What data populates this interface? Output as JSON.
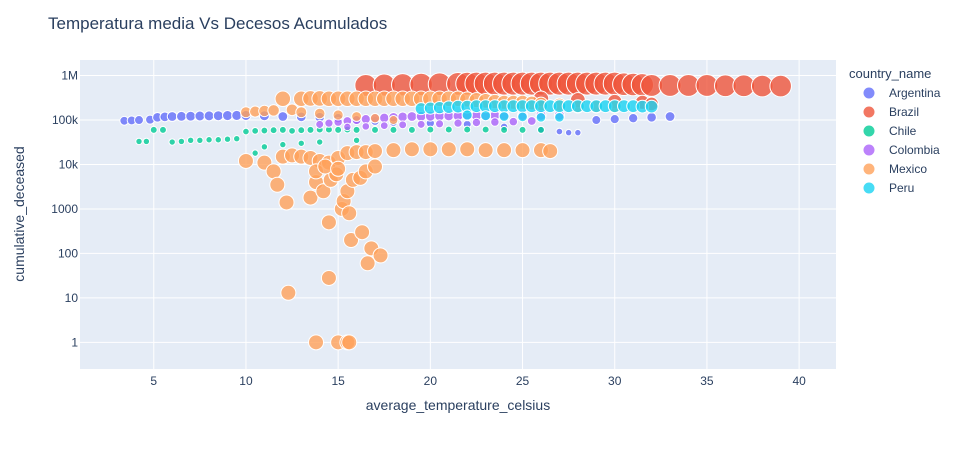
{
  "chart_data": {
    "type": "scatter",
    "title": "Temperatura media Vs Decesos Acumulados",
    "xlabel": "average_temperature_celsius",
    "ylabel": "cumulative_deceased",
    "xlim": [
      1,
      42
    ],
    "ylim_log10": [
      -0.6,
      6.35
    ],
    "y_scale": "log",
    "x_ticks": [
      5,
      10,
      15,
      20,
      25,
      30,
      35,
      40
    ],
    "x_tick_labels": [
      "5",
      "10",
      "15",
      "20",
      "25",
      "30",
      "35",
      "40"
    ],
    "y_ticks": [
      1,
      10,
      100,
      1000,
      10000,
      100000,
      1000000
    ],
    "y_tick_labels": [
      "1",
      "10",
      "100",
      "1000",
      "10k",
      "100k",
      "1M"
    ],
    "legend_title": "country_name",
    "legend_position": "right",
    "grid": true,
    "marker_size_encoding": "cumulative_deceased",
    "series": [
      {
        "name": "Argentina",
        "color": "#636efa",
        "points": [
          [
            3.4,
            96000
          ],
          [
            3.8,
            98000
          ],
          [
            4.2,
            100000
          ],
          [
            4.8,
            102000
          ],
          [
            5.2,
            115000
          ],
          [
            5.6,
            118000
          ],
          [
            6.0,
            120000
          ],
          [
            6.5,
            121000
          ],
          [
            7.0,
            122000
          ],
          [
            7.5,
            123000
          ],
          [
            8.0,
            124000
          ],
          [
            8.5,
            125000
          ],
          [
            9.0,
            126000
          ],
          [
            9.5,
            127000
          ],
          [
            10.0,
            127000
          ],
          [
            11.0,
            125000
          ],
          [
            12.0,
            120000
          ],
          [
            13.0,
            118000
          ],
          [
            14.0,
            116000
          ],
          [
            15.0,
            110000
          ],
          [
            16.0,
            100000
          ],
          [
            17.0,
            95000
          ],
          [
            18.0,
            90000
          ],
          [
            20.0,
            85000
          ],
          [
            22.0,
            80000
          ],
          [
            24.0,
            70000
          ],
          [
            26.0,
            60000
          ],
          [
            27.0,
            55000
          ],
          [
            27.5,
            52000
          ],
          [
            28.0,
            52000
          ],
          [
            29.0,
            100000
          ],
          [
            30.0,
            105000
          ],
          [
            31.0,
            110000
          ],
          [
            32.0,
            115000
          ],
          [
            33.0,
            120000
          ]
        ]
      },
      {
        "name": "Brazil",
        "color": "#EF553B",
        "points": [
          [
            16.5,
            600000
          ],
          [
            17.5,
            610000
          ],
          [
            18.5,
            620000
          ],
          [
            19.5,
            630000
          ],
          [
            20.5,
            640000
          ],
          [
            21.5,
            650000
          ],
          [
            22.0,
            655000
          ],
          [
            22.5,
            660000
          ],
          [
            23.0,
            660000
          ],
          [
            23.5,
            660000
          ],
          [
            24.0,
            660000
          ],
          [
            24.5,
            660000
          ],
          [
            25.0,
            660000
          ],
          [
            25.5,
            660000
          ],
          [
            26.0,
            660000
          ],
          [
            26.5,
            660000
          ],
          [
            27.0,
            660000
          ],
          [
            27.5,
            660000
          ],
          [
            28.0,
            660000
          ],
          [
            28.5,
            660000
          ],
          [
            29.0,
            660000
          ],
          [
            29.5,
            660000
          ],
          [
            30.0,
            660000
          ],
          [
            30.5,
            640000
          ],
          [
            31.0,
            630000
          ],
          [
            31.5,
            620000
          ],
          [
            32.0,
            600000
          ],
          [
            33.0,
            600000
          ],
          [
            34.0,
            600000
          ],
          [
            35.0,
            600000
          ],
          [
            36.0,
            590000
          ],
          [
            37.0,
            590000
          ],
          [
            38.0,
            580000
          ],
          [
            39.0,
            580000
          ],
          [
            26.0,
            300000
          ],
          [
            28.0,
            280000
          ],
          [
            30.0,
            260000
          ],
          [
            31.5,
            250000
          ],
          [
            32.0,
            230000
          ]
        ]
      },
      {
        "name": "Chile",
        "color": "#00cc96",
        "points": [
          [
            4.2,
            33000
          ],
          [
            4.6,
            33000
          ],
          [
            5.0,
            60000
          ],
          [
            5.5,
            60000
          ],
          [
            6.0,
            32000
          ],
          [
            6.5,
            33000
          ],
          [
            7.0,
            35000
          ],
          [
            7.5,
            35000
          ],
          [
            8.0,
            36000
          ],
          [
            8.5,
            36000
          ],
          [
            9.0,
            37000
          ],
          [
            9.5,
            38000
          ],
          [
            10.0,
            55000
          ],
          [
            10.5,
            57000
          ],
          [
            11.0,
            58000
          ],
          [
            11.5,
            59000
          ],
          [
            12.0,
            60000
          ],
          [
            12.5,
            57000
          ],
          [
            13.0,
            59000
          ],
          [
            13.5,
            60000
          ],
          [
            14.0,
            61000
          ],
          [
            14.5,
            61000
          ],
          [
            15.0,
            60000
          ],
          [
            15.5,
            61000
          ],
          [
            16.0,
            60000
          ],
          [
            17.0,
            60000
          ],
          [
            18.0,
            60000
          ],
          [
            19.0,
            60000
          ],
          [
            20.0,
            61000
          ],
          [
            21.0,
            61000
          ],
          [
            22.0,
            61000
          ],
          [
            23.0,
            61000
          ],
          [
            24.0,
            60000
          ],
          [
            25.0,
            60000
          ],
          [
            26.0,
            60000
          ],
          [
            10.5,
            18000
          ],
          [
            11.0,
            25000
          ],
          [
            12.0,
            28000
          ],
          [
            13.0,
            30000
          ],
          [
            14.0,
            32000
          ],
          [
            16.0,
            35000
          ]
        ]
      },
      {
        "name": "Colombia",
        "color": "#ab63fa",
        "points": [
          [
            14.0,
            80000
          ],
          [
            14.5,
            85000
          ],
          [
            15.0,
            90000
          ],
          [
            15.5,
            95000
          ],
          [
            16.0,
            100000
          ],
          [
            16.5,
            105000
          ],
          [
            17.0,
            110000
          ],
          [
            17.5,
            112000
          ],
          [
            18.0,
            115000
          ],
          [
            18.5,
            118000
          ],
          [
            19.0,
            120000
          ],
          [
            19.5,
            121000
          ],
          [
            20.0,
            122000
          ],
          [
            20.5,
            123000
          ],
          [
            21.0,
            124000
          ],
          [
            21.5,
            124000
          ],
          [
            22.0,
            125000
          ],
          [
            22.5,
            125000
          ],
          [
            23.0,
            126000
          ],
          [
            23.5,
            126000
          ],
          [
            24.0,
            127000
          ],
          [
            25.0,
            127000
          ],
          [
            26.0,
            128000
          ],
          [
            27.0,
            128000
          ],
          [
            15.5,
            70000
          ],
          [
            16.5,
            72000
          ],
          [
            17.5,
            75000
          ],
          [
            18.5,
            78000
          ],
          [
            19.5,
            80000
          ],
          [
            20.5,
            82000
          ],
          [
            21.5,
            85000
          ],
          [
            22.5,
            88000
          ],
          [
            23.5,
            90000
          ],
          [
            24.5,
            92000
          ],
          [
            25.5,
            95000
          ]
        ]
      },
      {
        "name": "Mexico",
        "color": "#FFA15A",
        "points": [
          [
            10.0,
            150000
          ],
          [
            10.5,
            155000
          ],
          [
            11.0,
            160000
          ],
          [
            11.5,
            165000
          ],
          [
            12.0,
            300000
          ],
          [
            12.5,
            170000
          ],
          [
            13.0,
            300000
          ],
          [
            13.5,
            305000
          ],
          [
            14.0,
            305000
          ],
          [
            14.5,
            300000
          ],
          [
            15.0,
            300000
          ],
          [
            15.5,
            300000
          ],
          [
            16.0,
            300000
          ],
          [
            16.5,
            300000
          ],
          [
            17.0,
            300000
          ],
          [
            17.5,
            300000
          ],
          [
            18.0,
            300000
          ],
          [
            18.5,
            300000
          ],
          [
            19.0,
            300000
          ],
          [
            19.5,
            300000
          ],
          [
            20.0,
            300000
          ],
          [
            20.5,
            300000
          ],
          [
            21.0,
            300000
          ],
          [
            21.5,
            300000
          ],
          [
            22.0,
            290000
          ],
          [
            22.5,
            280000
          ],
          [
            23.0,
            270000
          ],
          [
            23.5,
            260000
          ],
          [
            24.0,
            250000
          ],
          [
            24.5,
            250000
          ],
          [
            25.0,
            250000
          ],
          [
            25.5,
            240000
          ],
          [
            26.0,
            230000
          ],
          [
            27.0,
            220000
          ],
          [
            28.0,
            200000
          ],
          [
            29.0,
            200000
          ],
          [
            30.0,
            200000
          ],
          [
            13.0,
            150000
          ],
          [
            14.0,
            140000
          ],
          [
            15.0,
            130000
          ],
          [
            16.0,
            120000
          ],
          [
            17.0,
            110000
          ],
          [
            18.0,
            100000
          ],
          [
            10.0,
            12000
          ],
          [
            11.0,
            11000
          ],
          [
            11.5,
            7000
          ],
          [
            12.0,
            15000
          ],
          [
            12.5,
            16000
          ],
          [
            13.0,
            15000
          ],
          [
            13.5,
            14000
          ],
          [
            14.0,
            12000
          ],
          [
            14.5,
            11000
          ],
          [
            15.0,
            14000
          ],
          [
            15.5,
            18000
          ],
          [
            16.0,
            19000
          ],
          [
            16.5,
            19000
          ],
          [
            17.0,
            20000
          ],
          [
            18.0,
            21000
          ],
          [
            19.0,
            22000
          ],
          [
            20.0,
            22000
          ],
          [
            21.0,
            22000
          ],
          [
            22.0,
            22000
          ],
          [
            23.0,
            21000
          ],
          [
            24.0,
            21000
          ],
          [
            25.0,
            21000
          ],
          [
            26.0,
            21000
          ],
          [
            26.5,
            20000
          ],
          [
            11.7,
            3500
          ],
          [
            12.2,
            1400
          ],
          [
            13.5,
            1800
          ],
          [
            13.8,
            4000
          ],
          [
            14.2,
            2500
          ],
          [
            14.6,
            4500
          ],
          [
            14.9,
            6000
          ],
          [
            15.2,
            1000
          ],
          [
            15.3,
            1500
          ],
          [
            15.5,
            2500
          ],
          [
            15.6,
            800
          ],
          [
            15.8,
            4500
          ],
          [
            16.2,
            5000
          ],
          [
            16.5,
            7000
          ],
          [
            17.0,
            9000
          ],
          [
            13.8,
            7000
          ],
          [
            14.3,
            9000
          ],
          [
            15.0,
            8000
          ],
          [
            14.5,
            500
          ],
          [
            15.7,
            200
          ],
          [
            16.3,
            300
          ],
          [
            16.8,
            130
          ],
          [
            17.3,
            90
          ],
          [
            16.6,
            60
          ],
          [
            14.5,
            28
          ],
          [
            12.3,
            13
          ],
          [
            13.8,
            1
          ],
          [
            15.0,
            1
          ],
          [
            15.5,
            1
          ],
          [
            15.6,
            1
          ]
        ]
      },
      {
        "name": "Peru",
        "color": "#19d3f3",
        "points": [
          [
            19.5,
            180000
          ],
          [
            20.0,
            185000
          ],
          [
            20.5,
            190000
          ],
          [
            21.0,
            195000
          ],
          [
            21.5,
            200000
          ],
          [
            22.0,
            200000
          ],
          [
            22.5,
            205000
          ],
          [
            23.0,
            205000
          ],
          [
            23.5,
            205000
          ],
          [
            24.0,
            205000
          ],
          [
            24.5,
            205000
          ],
          [
            25.0,
            205000
          ],
          [
            25.5,
            205000
          ],
          [
            26.0,
            205000
          ],
          [
            26.5,
            205000
          ],
          [
            27.0,
            205000
          ],
          [
            27.5,
            205000
          ],
          [
            28.0,
            205000
          ],
          [
            28.5,
            205000
          ],
          [
            29.0,
            205000
          ],
          [
            29.5,
            205000
          ],
          [
            30.0,
            205000
          ],
          [
            30.5,
            205000
          ],
          [
            31.0,
            205000
          ],
          [
            31.5,
            200000
          ],
          [
            32.0,
            200000
          ],
          [
            22.0,
            130000
          ],
          [
            23.0,
            125000
          ],
          [
            24.0,
            120000
          ],
          [
            25.0,
            118000
          ],
          [
            26.0,
            115000
          ],
          [
            27.0,
            115000
          ]
        ]
      }
    ]
  }
}
